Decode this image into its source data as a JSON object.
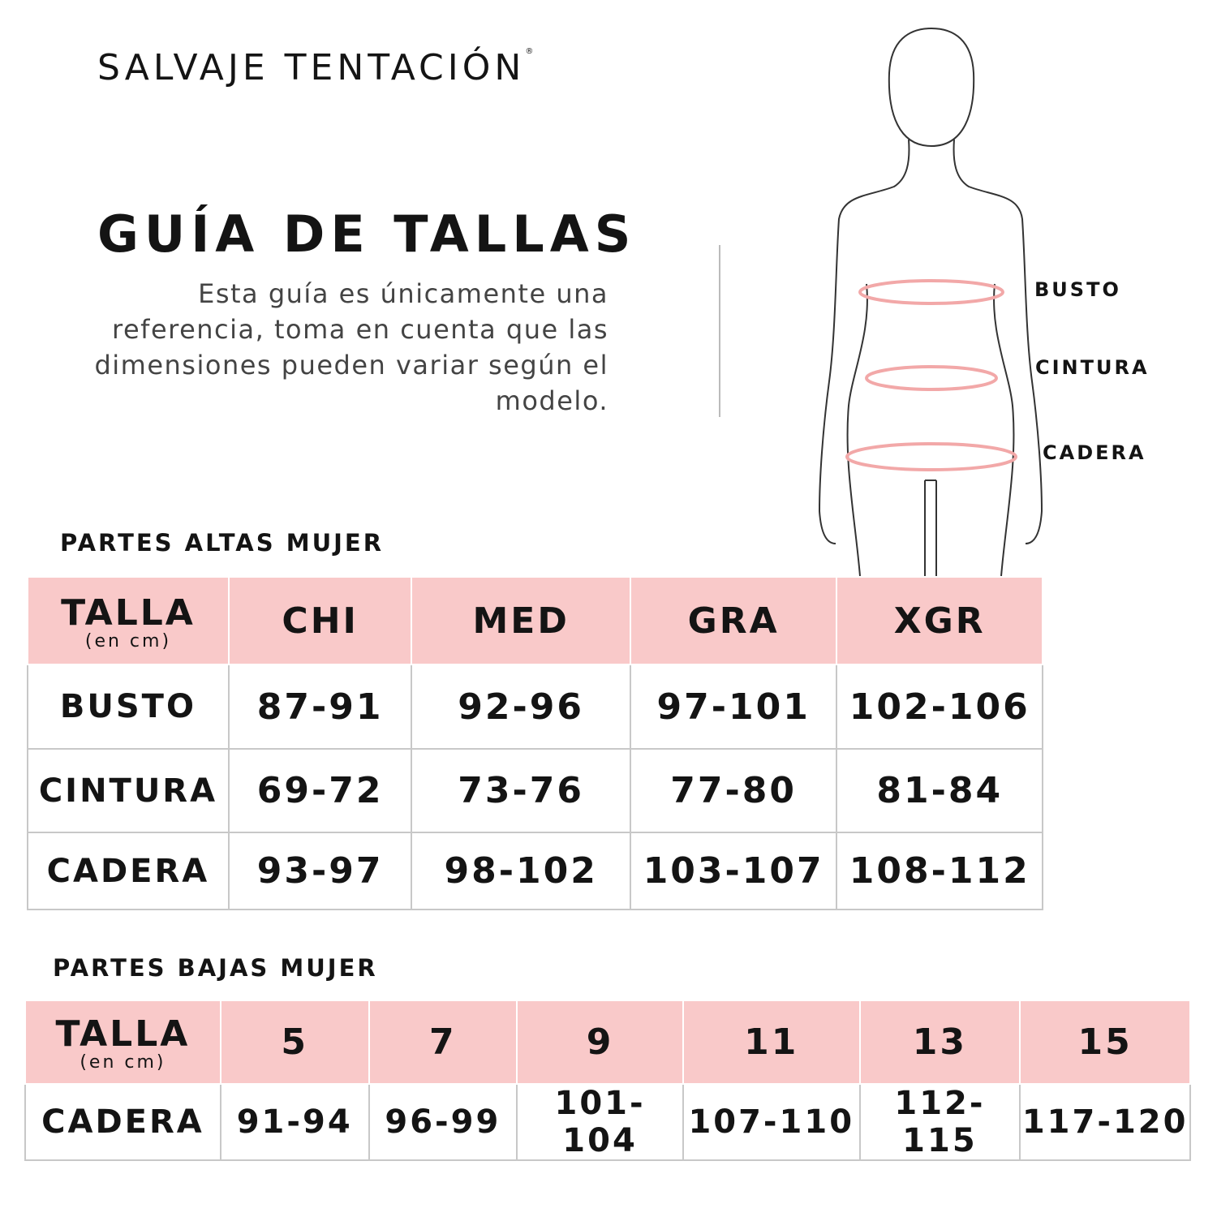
{
  "brand": {
    "name": "SALVAJE TENTACIÓN",
    "reg": "®"
  },
  "title": "GUÍA DE TALLAS",
  "description": "Esta guía es únicamente una referencia, toma en cuenta que las dimensiones pueden variar según el modelo.",
  "figure": {
    "labels": [
      "BUSTO",
      "CINTURA",
      "CADERA"
    ],
    "accent": "#f2a8a8"
  },
  "colors": {
    "header_bg": "#f9c9c9"
  },
  "upper": {
    "title": "PARTES ALTAS MUJER",
    "header": {
      "label": "TALLA",
      "sub": "(en cm)",
      "sizes": [
        "CHI",
        "MED",
        "GRA",
        "XGR"
      ]
    },
    "rows": [
      {
        "label": "BUSTO",
        "values": [
          "87-91",
          "92-96",
          "97-101",
          "102-106"
        ]
      },
      {
        "label": "CINTURA",
        "values": [
          "69-72",
          "73-76",
          "77-80",
          "81-84"
        ]
      },
      {
        "label": "CADERA",
        "values": [
          "93-97",
          "98-102",
          "103-107",
          "108-112"
        ]
      }
    ]
  },
  "lower": {
    "title": "PARTES BAJAS MUJER",
    "header": {
      "label": "TALLA",
      "sub": "(en cm)",
      "sizes": [
        "5",
        "7",
        "9",
        "11",
        "13",
        "15"
      ]
    },
    "rows": [
      {
        "label": "CADERA",
        "values": [
          "91-94",
          "96-99",
          "101-104",
          "107-110",
          "112-115",
          "117-120"
        ]
      }
    ]
  }
}
